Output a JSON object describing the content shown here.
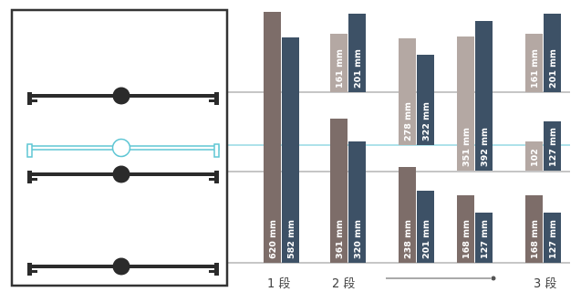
{
  "colors": {
    "brown": "#7d6d69",
    "brown_light": "#b4a8a3",
    "navy": "#3d5166",
    "cyan": "#5ec6d4",
    "frame": "#333333",
    "rail": "#2b2b2b",
    "guide": "#8c8c8c",
    "arrow": "#555555"
  },
  "icons": {
    "cabinet": "cabinet-frame-icon",
    "drawer_rail": "drawer-rail-icon",
    "highlighted_rail": "highlighted-drawer-rail-icon"
  },
  "tier_labels": [
    "1 段",
    "2 段",
    "3 段"
  ],
  "bars": [
    {
      "label": "620 mm",
      "tone": "brown"
    },
    {
      "label": "582 mm",
      "tone": "navy"
    },
    {
      "label": "161 mm",
      "tone": "brown_light"
    },
    {
      "label": "201 mm",
      "tone": "navy"
    },
    {
      "label": "361 mm",
      "tone": "brown"
    },
    {
      "label": "320 mm",
      "tone": "navy"
    },
    {
      "label": "278 mm",
      "tone": "brown_light"
    },
    {
      "label": "322 mm",
      "tone": "navy"
    },
    {
      "label": "238 mm",
      "tone": "brown"
    },
    {
      "label": "201 mm",
      "tone": "navy"
    },
    {
      "label": "351 mm",
      "tone": "brown_light"
    },
    {
      "label": "392 mm",
      "tone": "navy"
    },
    {
      "label": "168 mm",
      "tone": "brown"
    },
    {
      "label": "127 mm",
      "tone": "navy"
    },
    {
      "label": "161 mm",
      "tone": "brown_light"
    },
    {
      "label": "201 mm",
      "tone": "navy"
    },
    {
      "label": "102",
      "tone": "brown_light"
    },
    {
      "label": "127 mm",
      "tone": "navy"
    },
    {
      "label": "168 mm",
      "tone": "brown"
    },
    {
      "label": "127 mm",
      "tone": "navy"
    }
  ]
}
